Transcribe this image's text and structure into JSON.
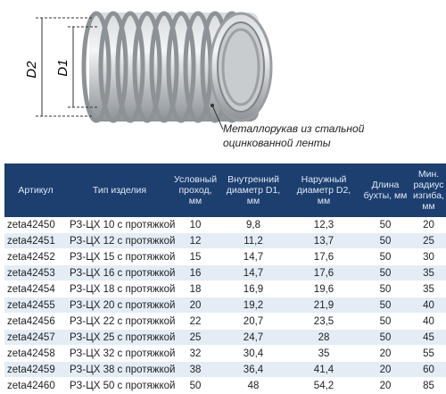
{
  "illustration": {
    "d2_label": "D2",
    "d1_label": "D1",
    "caption": [
      "Металлорукав из стальной",
      "оцинкованной ленты"
    ]
  },
  "table": {
    "headers": [
      "Артикул",
      "Тип изделия",
      "Условный проход, мм",
      "Внутренний диаметр D1, мм",
      "Наружный диаметр D2, мм",
      "Длина бухты, мм",
      "Мин. радиус изгиба, мм"
    ],
    "rows": [
      [
        "zeta42450",
        "РЗ-ЦХ 10 с протяжкой",
        "10",
        "9,8",
        "12,3",
        "50",
        "20"
      ],
      [
        "zeta42451",
        "РЗ-ЦХ 12 с протяжкой",
        "12",
        "11,2",
        "13,7",
        "50",
        "25"
      ],
      [
        "zeta42452",
        "РЗ-ЦХ 15 с протяжкой",
        "15",
        "14,7",
        "17,6",
        "50",
        "30"
      ],
      [
        "zeta42453",
        "РЗ-ЦХ 16 с протяжкой",
        "16",
        "14,7",
        "17,6",
        "50",
        "35"
      ],
      [
        "zeta42454",
        "РЗ-ЦХ 18 с протяжкой",
        "18",
        "16,9",
        "19,6",
        "50",
        "35"
      ],
      [
        "zeta42455",
        "РЗ-ЦХ 20 с протяжкой",
        "20",
        "19,2",
        "21,9",
        "50",
        "40"
      ],
      [
        "zeta42456",
        "РЗ-ЦХ 22 с протяжкой",
        "22",
        "20,7",
        "23,5",
        "50",
        "40"
      ],
      [
        "zeta42457",
        "РЗ-ЦХ 25 с протяжкой",
        "25",
        "24,7",
        "28",
        "50",
        "45"
      ],
      [
        "zeta42458",
        "РЗ-ЦХ 32 с протяжкой",
        "32",
        "30,4",
        "35",
        "20",
        "55"
      ],
      [
        "zeta42459",
        "РЗ-ЦХ 38 с протяжкой",
        "38",
        "36,4",
        "41,4",
        "20",
        "60"
      ],
      [
        "zeta42460",
        "РЗ-ЦХ 50 с протяжкой",
        "50",
        "48",
        "54,2",
        "20",
        "85"
      ]
    ]
  }
}
